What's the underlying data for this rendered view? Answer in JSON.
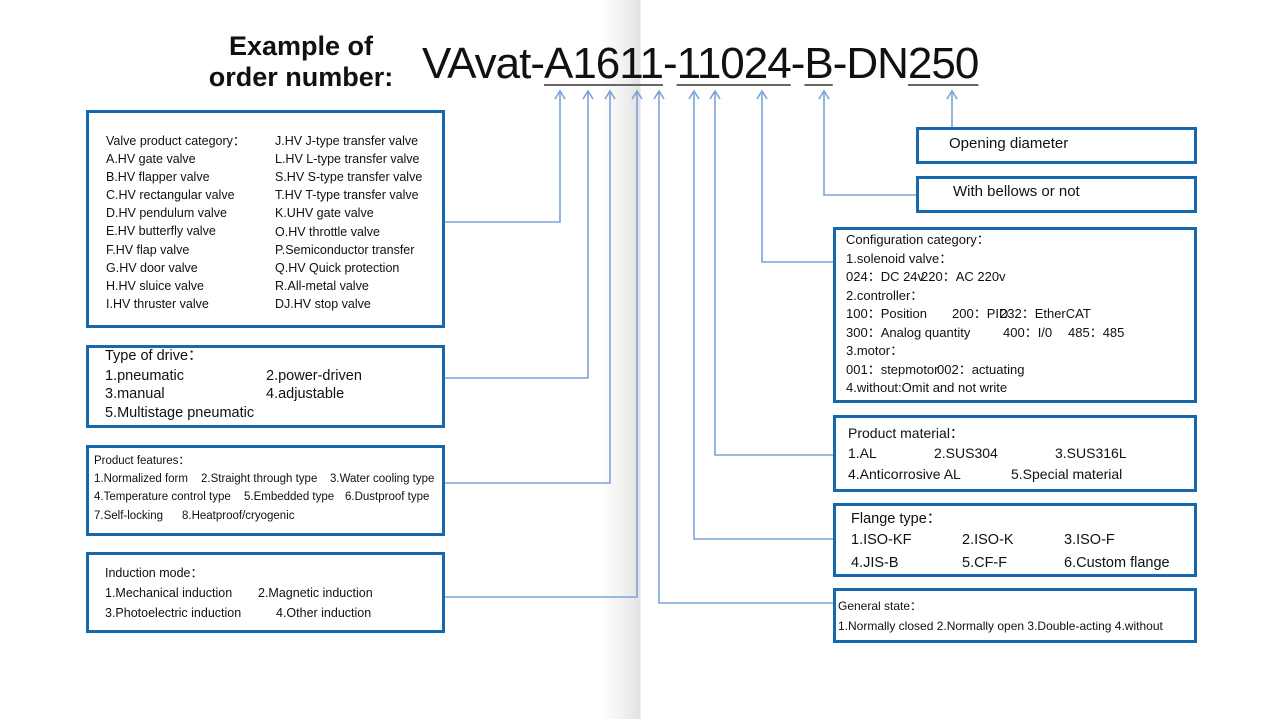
{
  "header": {
    "title_line1": "Example of",
    "title_line2": "order number:",
    "order_number": {
      "prefix": "VAvat-",
      "seg1": "A1611",
      "dash1": "-",
      "seg2": "11024",
      "dash2": "-",
      "seg3": "B",
      "dash3": "-DN",
      "seg4": "250"
    }
  },
  "colors": {
    "box_border": "#1769ae",
    "connector": "#7ba3d8"
  },
  "valve_category": {
    "title": "Valve product category：",
    "col1": [
      "A.HV gate valve",
      "B.HV flapper valve",
      "C.HV rectangular valve",
      "D.HV pendulum valve",
      "E.HV butterfly valve",
      "F.HV flap valve",
      "G.HV door valve",
      "H.HV sluice valve",
      "I.HV thruster valve"
    ],
    "col2": [
      "J.HV J-type transfer valve",
      "L.HV L-type transfer valve",
      "S.HV S-type transfer valve",
      "T.HV T-type transfer valve",
      "K.UHV gate valve",
      "O.HV throttle valve",
      "P.Semiconductor transfer",
      "Q.HV Quick protection",
      "R.All-metal valve",
      "DJ.HV stop valve"
    ]
  },
  "drive": {
    "title": "Type of drive：",
    "items": [
      "1.pneumatic",
      "2.power-driven",
      "3.manual",
      "4.adjustable",
      "5.Multistage pneumatic"
    ]
  },
  "features": {
    "title": "Product features：",
    "items": [
      "1.Normalized form",
      "2.Straight through type",
      "3.Water cooling type",
      "4.Temperature control type",
      "5.Embedded type",
      "6.Dustproof type",
      "7.Self-locking",
      "8.Heatproof/cryogenic"
    ]
  },
  "induction": {
    "title": "Induction mode：",
    "items": [
      "1.Mechanical induction",
      "2.Magnetic induction",
      "3.Photoelectric induction",
      "4.Other induction"
    ]
  },
  "opening": {
    "title": "Opening diameter"
  },
  "bellows": {
    "title": "With bellows or not"
  },
  "config": {
    "title": "Configuration category：",
    "solenoid": "1.solenoid valve：",
    "solenoid_items": [
      "024：DC 24v",
      "220：AC 220v"
    ],
    "controller": "2.controller：",
    "controller_items": [
      "100：Position",
      "200：PID",
      "232：EtherCAT",
      "300：Analog quantity",
      "400：I/0",
      "485：485"
    ],
    "motor": "3.motor：",
    "motor_items": [
      "001：stepmotor",
      "002：actuating"
    ],
    "without": "4.without:Omit and not write"
  },
  "material": {
    "title": "Product material：",
    "items": [
      "1.AL",
      "2.SUS304",
      "3.SUS316L",
      "4.Anticorrosive AL",
      "5.Special material"
    ]
  },
  "flange": {
    "title": "Flange type：",
    "items": [
      "1.ISO-KF",
      "2.ISO-K",
      "3.ISO-F",
      "4.JIS-B",
      "5.CF-F",
      "6.Custom flange"
    ]
  },
  "general": {
    "title": "General state：",
    "text": "1.Normally closed 2.Normally open 3.Double-acting 4.without"
  }
}
